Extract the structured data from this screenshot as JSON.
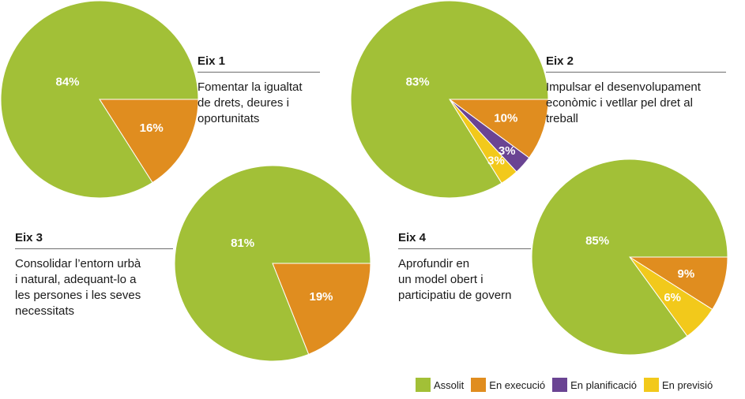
{
  "colors": {
    "assolit": "#a2c037",
    "execucio": "#e08d1f",
    "planificacio": "#6a4493",
    "previsio": "#f2c91b"
  },
  "legend": [
    {
      "key": "assolit",
      "label": "Assolit"
    },
    {
      "key": "execucio",
      "label": "En execució"
    },
    {
      "key": "planificacio",
      "label": "En planificació"
    },
    {
      "key": "previsio",
      "label": "En previsió"
    }
  ],
  "axes": [
    {
      "title": "Eix 1",
      "desc": [
        "Fomentar la igualtat",
        "de drets, deures i",
        "oportunitats"
      ]
    },
    {
      "title": "Eix 2",
      "desc": [
        "Impulsar el desenvolupament",
        "econòmic i vetllar pel dret al",
        "treball"
      ]
    },
    {
      "title": "Eix 3",
      "desc": [
        "Consolidar l’entorn urbà",
        "i natural, adequant-lo a",
        "les persones i les seves",
        "necessitats"
      ]
    },
    {
      "title": "Eix 4",
      "desc": [
        "Aprofundir en",
        "un model obert i",
        "participatiu de govern"
      ]
    }
  ],
  "chart_data": [
    {
      "type": "pie",
      "categories": [
        "En execució",
        "Assolit"
      ],
      "values": [
        16,
        84
      ],
      "labels": [
        "16%",
        "84%"
      ]
    },
    {
      "type": "pie",
      "categories": [
        "En execució",
        "En planificació",
        "En previsió",
        "Assolit"
      ],
      "values": [
        10,
        3,
        3,
        83
      ],
      "labels": [
        "10%",
        "3%",
        "3%",
        "83%"
      ]
    },
    {
      "type": "pie",
      "categories": [
        "En execució",
        "Assolit"
      ],
      "values": [
        19,
        81
      ],
      "labels": [
        "19%",
        "81%"
      ]
    },
    {
      "type": "pie",
      "categories": [
        "En execució",
        "En previsió",
        "Assolit"
      ],
      "values": [
        9,
        6,
        85
      ],
      "labels": [
        "9%",
        "6%",
        "85%"
      ]
    }
  ]
}
